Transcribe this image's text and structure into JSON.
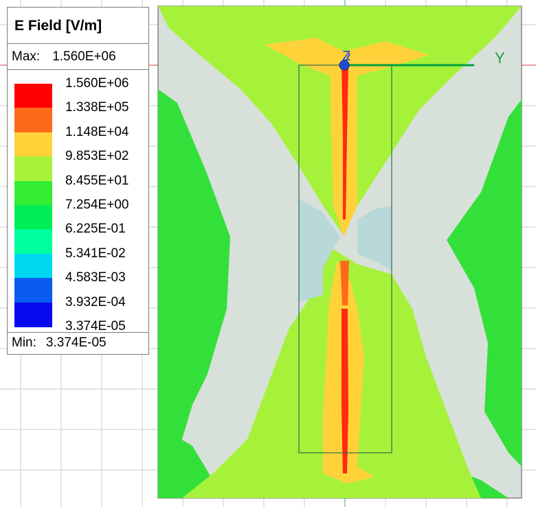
{
  "legend": {
    "title": "E Field [V/m]",
    "max_label": "Max:",
    "max_value": "1.560E+06",
    "min_label": "Min:",
    "min_value": "3.374E-05",
    "ticks": [
      "1.560E+06",
      "1.338E+05",
      "1.148E+04",
      "9.853E+02",
      "8.455E+01",
      "7.254E+00",
      "6.225E-01",
      "5.341E-02",
      "4.583E-03",
      "3.932E-04",
      "3.374E-05"
    ],
    "colors": [
      "#ff0000",
      "#ff6a1a",
      "#ffd23a",
      "#a6f23a",
      "#33ee33",
      "#00ee55",
      "#00ffa0",
      "#00d8f0",
      "#0a5cf0",
      "#0a0aee"
    ]
  },
  "axes": {
    "y_label": "Y",
    "z_label": "Z"
  },
  "colors": {
    "grid": "#c8c8c8",
    "background_cell": "#d8e0da",
    "axis_x_line": "#e08080",
    "axis_y_line": "#00a040"
  }
}
